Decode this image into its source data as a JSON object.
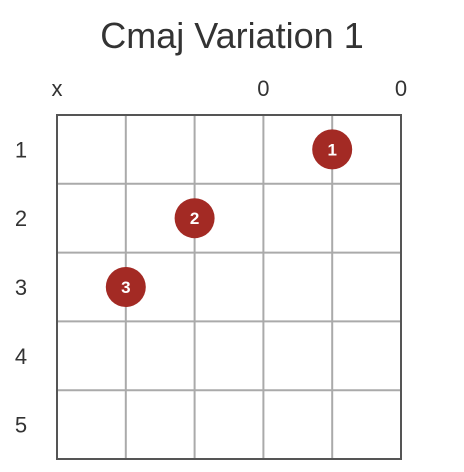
{
  "title": "Cmaj Variation 1",
  "colors": {
    "finger_dot": "#a32a24",
    "grid_line": "#aaaaaa",
    "grid_border": "#555555",
    "text": "#333333"
  },
  "string_markers": [
    "x",
    "",
    "",
    "0",
    "",
    "0"
  ],
  "fret_labels": [
    "1",
    "2",
    "3",
    "4",
    "5"
  ],
  "fingers": [
    {
      "label": "1",
      "string": 5,
      "fret": 1
    },
    {
      "label": "2",
      "string": 3,
      "fret": 2
    },
    {
      "label": "3",
      "string": 2,
      "fret": 3
    }
  ],
  "string_count": 6,
  "fret_count": 5
}
